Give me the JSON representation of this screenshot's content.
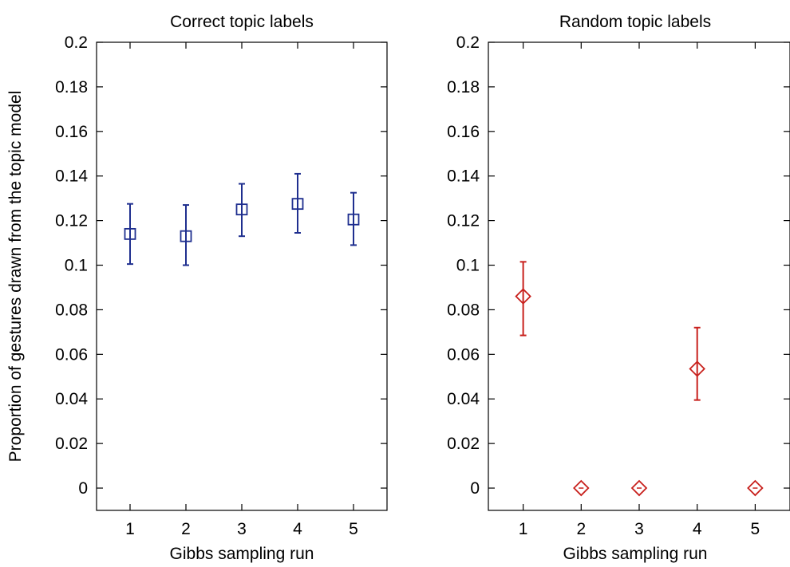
{
  "chart_data": [
    {
      "type": "scatter",
      "title": "Correct topic labels",
      "xlabel": "Gibbs sampling run",
      "ylabel": "Proportion of gestures drawn from the topic model",
      "categories": [
        "1",
        "2",
        "3",
        "4",
        "5"
      ],
      "x": [
        1,
        2,
        3,
        4,
        5
      ],
      "xlim": [
        0.4,
        5.6
      ],
      "ylim": [
        -0.01,
        0.2
      ],
      "yticks": [
        "0",
        "0.02",
        "0.04",
        "0.06",
        "0.08",
        "0.1",
        "0.12",
        "0.14",
        "0.16",
        "0.18",
        "0.2"
      ],
      "grid": false,
      "series": [
        {
          "marker": "square",
          "color": "#1f2f8f",
          "values": [
            0.114,
            0.113,
            0.125,
            0.1275,
            0.1205
          ],
          "error_low": [
            0.1005,
            0.1,
            0.113,
            0.1145,
            0.109
          ],
          "error_high": [
            0.1275,
            0.127,
            0.1365,
            0.141,
            0.1325
          ]
        }
      ]
    },
    {
      "type": "scatter",
      "title": "Random topic labels",
      "xlabel": "Gibbs sampling run",
      "ylabel": "",
      "categories": [
        "1",
        "2",
        "3",
        "4",
        "5"
      ],
      "x": [
        1,
        2,
        3,
        4,
        5
      ],
      "xlim": [
        0.4,
        5.6
      ],
      "ylim": [
        -0.01,
        0.2
      ],
      "yticks": [
        "0",
        "0.02",
        "0.04",
        "0.06",
        "0.08",
        "0.1",
        "0.12",
        "0.14",
        "0.16",
        "0.18",
        "0.2"
      ],
      "grid": false,
      "series": [
        {
          "marker": "diamond",
          "color": "#c8201c",
          "values": [
            0.086,
            0,
            0,
            0.0535,
            0
          ],
          "error_low": [
            0.0685,
            0,
            0,
            0.0395,
            0
          ],
          "error_high": [
            0.1015,
            0,
            0,
            0.072,
            0
          ]
        }
      ]
    }
  ]
}
